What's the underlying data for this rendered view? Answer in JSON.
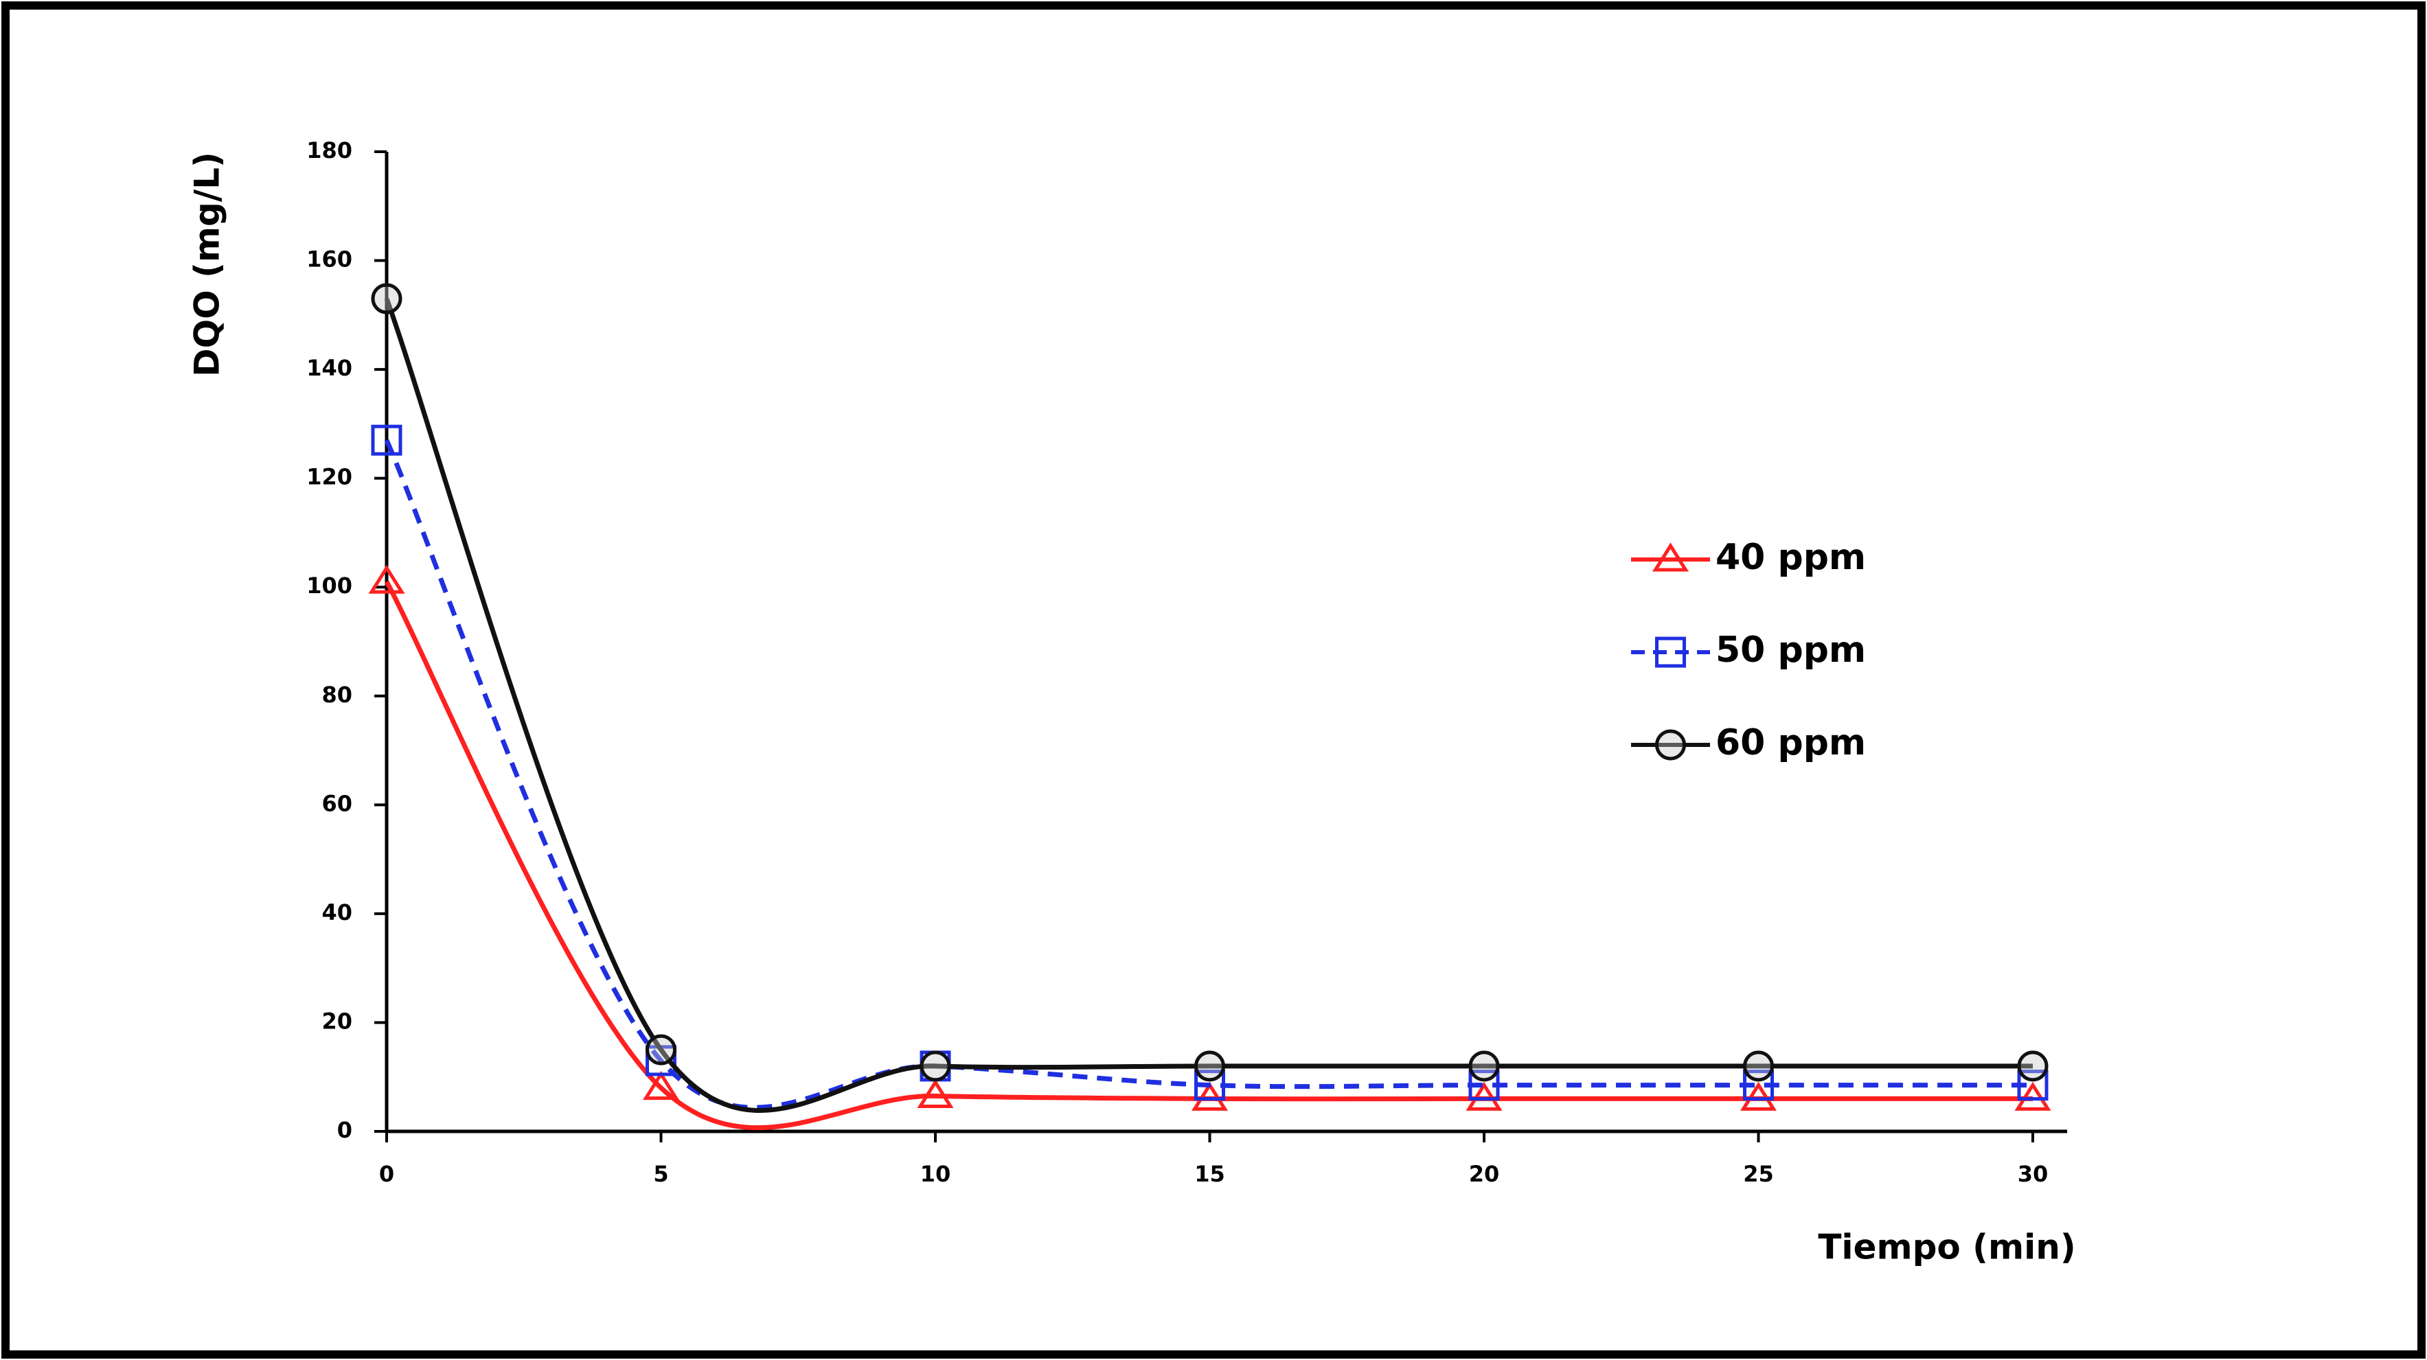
{
  "chart_data": {
    "type": "line",
    "x_label": "Tiempo (min)",
    "y_label": "DQO (mg/L)",
    "x": [
      0,
      5,
      10,
      15,
      20,
      25,
      30
    ],
    "xlim": [
      0,
      30
    ],
    "xticks": [
      0,
      5,
      10,
      15,
      20,
      25,
      30
    ],
    "ylim": [
      0,
      180
    ],
    "yticks": [
      0,
      20,
      40,
      60,
      80,
      100,
      120,
      140,
      160,
      180
    ],
    "smooth": true,
    "grid": false,
    "legend": "right",
    "series": [
      {
        "name": "40 ppm",
        "color": "#ff2020",
        "marker": "triangle",
        "dash": false,
        "values": [
          101,
          8,
          6.5,
          6,
          6,
          6,
          6
        ]
      },
      {
        "name": "50 ppm",
        "color": "#1f2fe0",
        "marker": "square",
        "dash": true,
        "values": [
          127,
          13,
          12,
          8.5,
          8.5,
          8.5,
          8.5
        ]
      },
      {
        "name": "60 ppm",
        "color": "#111111",
        "marker": "circle",
        "dash": false,
        "values": [
          153,
          15,
          12,
          12,
          12,
          12,
          12
        ]
      }
    ]
  }
}
